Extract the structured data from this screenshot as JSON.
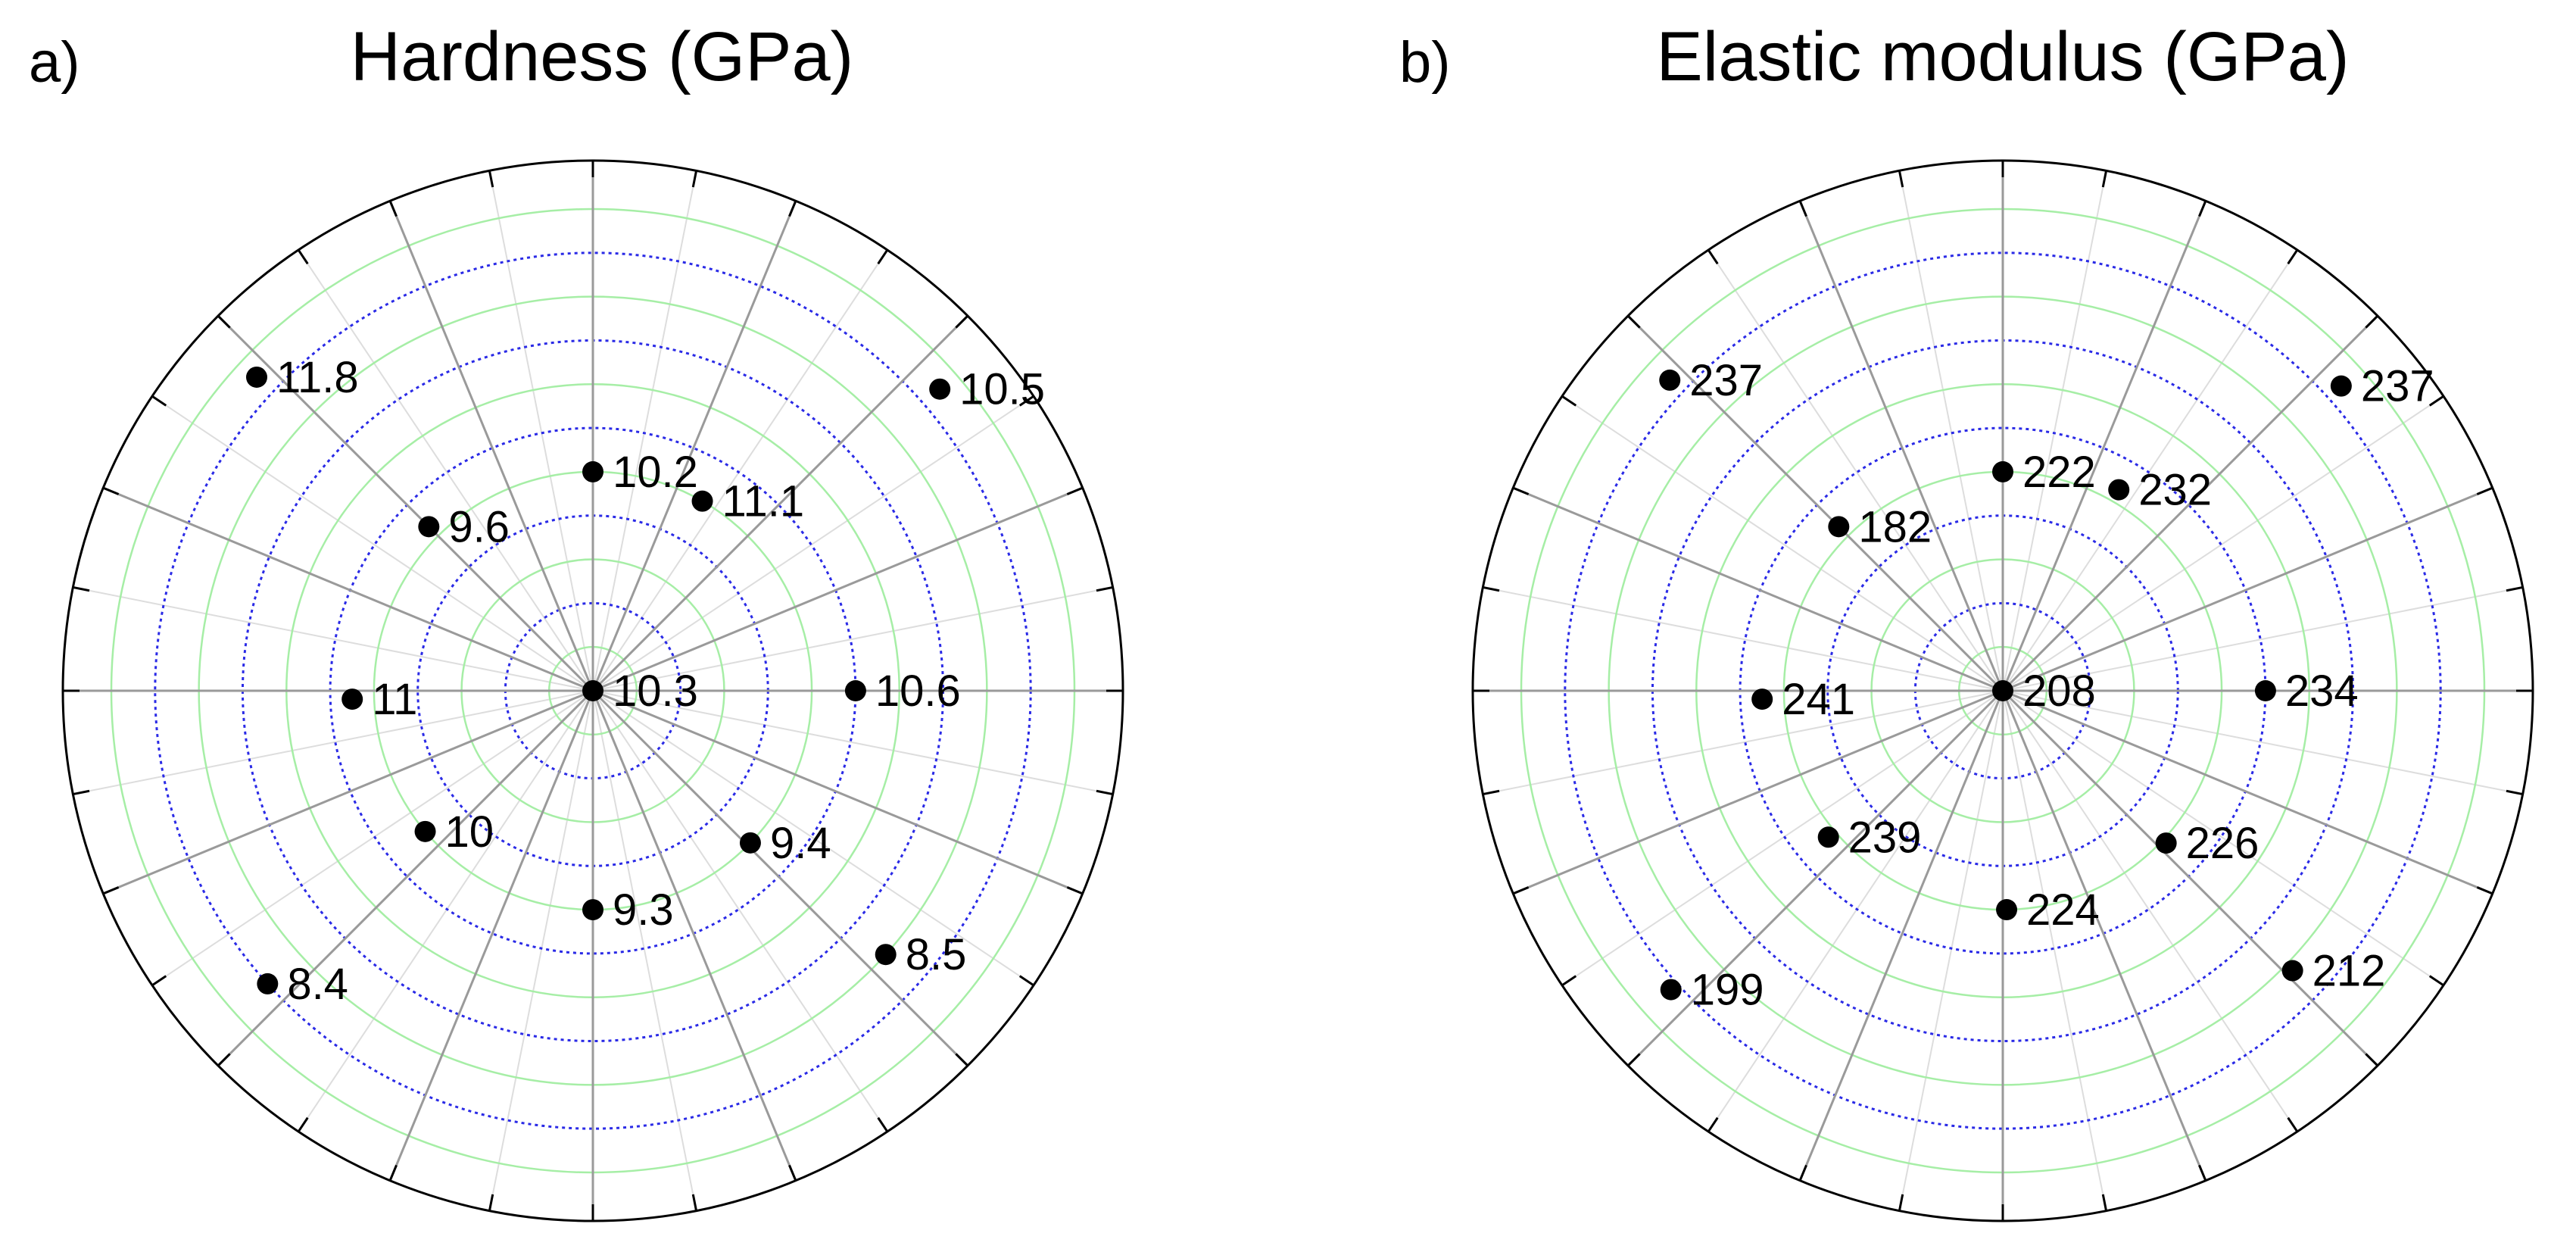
{
  "chart_data": [
    {
      "type": "scatter",
      "coordinate_system": "polar",
      "panel_label": "a)",
      "title": "Hardness (GPa)",
      "grid": true,
      "radial_rings": 11,
      "angular_spokes_deg": [
        0,
        22.5,
        45,
        67.5,
        90,
        112.5,
        135,
        157.5,
        180,
        202.5,
        225,
        247.5,
        270,
        292.5,
        315,
        337.5
      ],
      "colors": {
        "major_spokes": "#9a9a9a",
        "minor_spokes": "#dddddd",
        "rings_blue_dotted": "#2a2ae6",
        "rings_green": "#a6eea6",
        "points": "#000000"
      },
      "points": [
        {
          "angle_deg": 0,
          "radius": 0,
          "label": "10.3"
        },
        {
          "angle_deg": 90,
          "radius": 5,
          "label": "10.2"
        },
        {
          "angle_deg": 60,
          "radius": 5,
          "label": "11.1"
        },
        {
          "angle_deg": 0,
          "radius": 6,
          "label": "10.6"
        },
        {
          "angle_deg": 316,
          "radius": 5,
          "label": "9.4"
        },
        {
          "angle_deg": 270,
          "radius": 5,
          "label": "9.3"
        },
        {
          "angle_deg": 220,
          "radius": 5,
          "label": "10"
        },
        {
          "angle_deg": 182,
          "radius": 5.5,
          "label": "11"
        },
        {
          "angle_deg": 135,
          "radius": 5.3,
          "label": "9.6"
        },
        {
          "angle_deg": 137,
          "radius": 10.5,
          "label": "11.8"
        },
        {
          "angle_deg": 41,
          "radius": 10.5,
          "label": "10.5"
        },
        {
          "angle_deg": 318,
          "radius": 9,
          "label": "8.5"
        },
        {
          "angle_deg": 222,
          "radius": 10,
          "label": "8.4"
        }
      ]
    },
    {
      "type": "scatter",
      "coordinate_system": "polar",
      "panel_label": "b)",
      "title": "Elastic modulus (GPa)",
      "grid": true,
      "radial_rings": 11,
      "angular_spokes_deg": [
        0,
        22.5,
        45,
        67.5,
        90,
        112.5,
        135,
        157.5,
        180,
        202.5,
        225,
        247.5,
        270,
        292.5,
        315,
        337.5
      ],
      "colors": {
        "major_spokes": "#9a9a9a",
        "minor_spokes": "#dddddd",
        "rings_blue_dotted": "#2a2ae6",
        "rings_green": "#a6eea6",
        "points": "#000000"
      },
      "points": [
        {
          "angle_deg": 0,
          "radius": 0,
          "label": "208"
        },
        {
          "angle_deg": 90,
          "radius": 5,
          "label": "222"
        },
        {
          "angle_deg": 60,
          "radius": 5.3,
          "label": "232"
        },
        {
          "angle_deg": 0,
          "radius": 6,
          "label": "234"
        },
        {
          "angle_deg": 317,
          "radius": 5.1,
          "label": "226"
        },
        {
          "angle_deg": 271,
          "radius": 5,
          "label": "224"
        },
        {
          "angle_deg": 220,
          "radius": 5.2,
          "label": "239"
        },
        {
          "angle_deg": 182,
          "radius": 5.5,
          "label": "241"
        },
        {
          "angle_deg": 135,
          "radius": 5.3,
          "label": "182"
        },
        {
          "angle_deg": 137,
          "radius": 10.4,
          "label": "237"
        },
        {
          "angle_deg": 42,
          "radius": 10.4,
          "label": "237"
        },
        {
          "angle_deg": 316,
          "radius": 9.2,
          "label": "212"
        },
        {
          "angle_deg": 222,
          "radius": 10.2,
          "label": "199"
        }
      ]
    }
  ]
}
